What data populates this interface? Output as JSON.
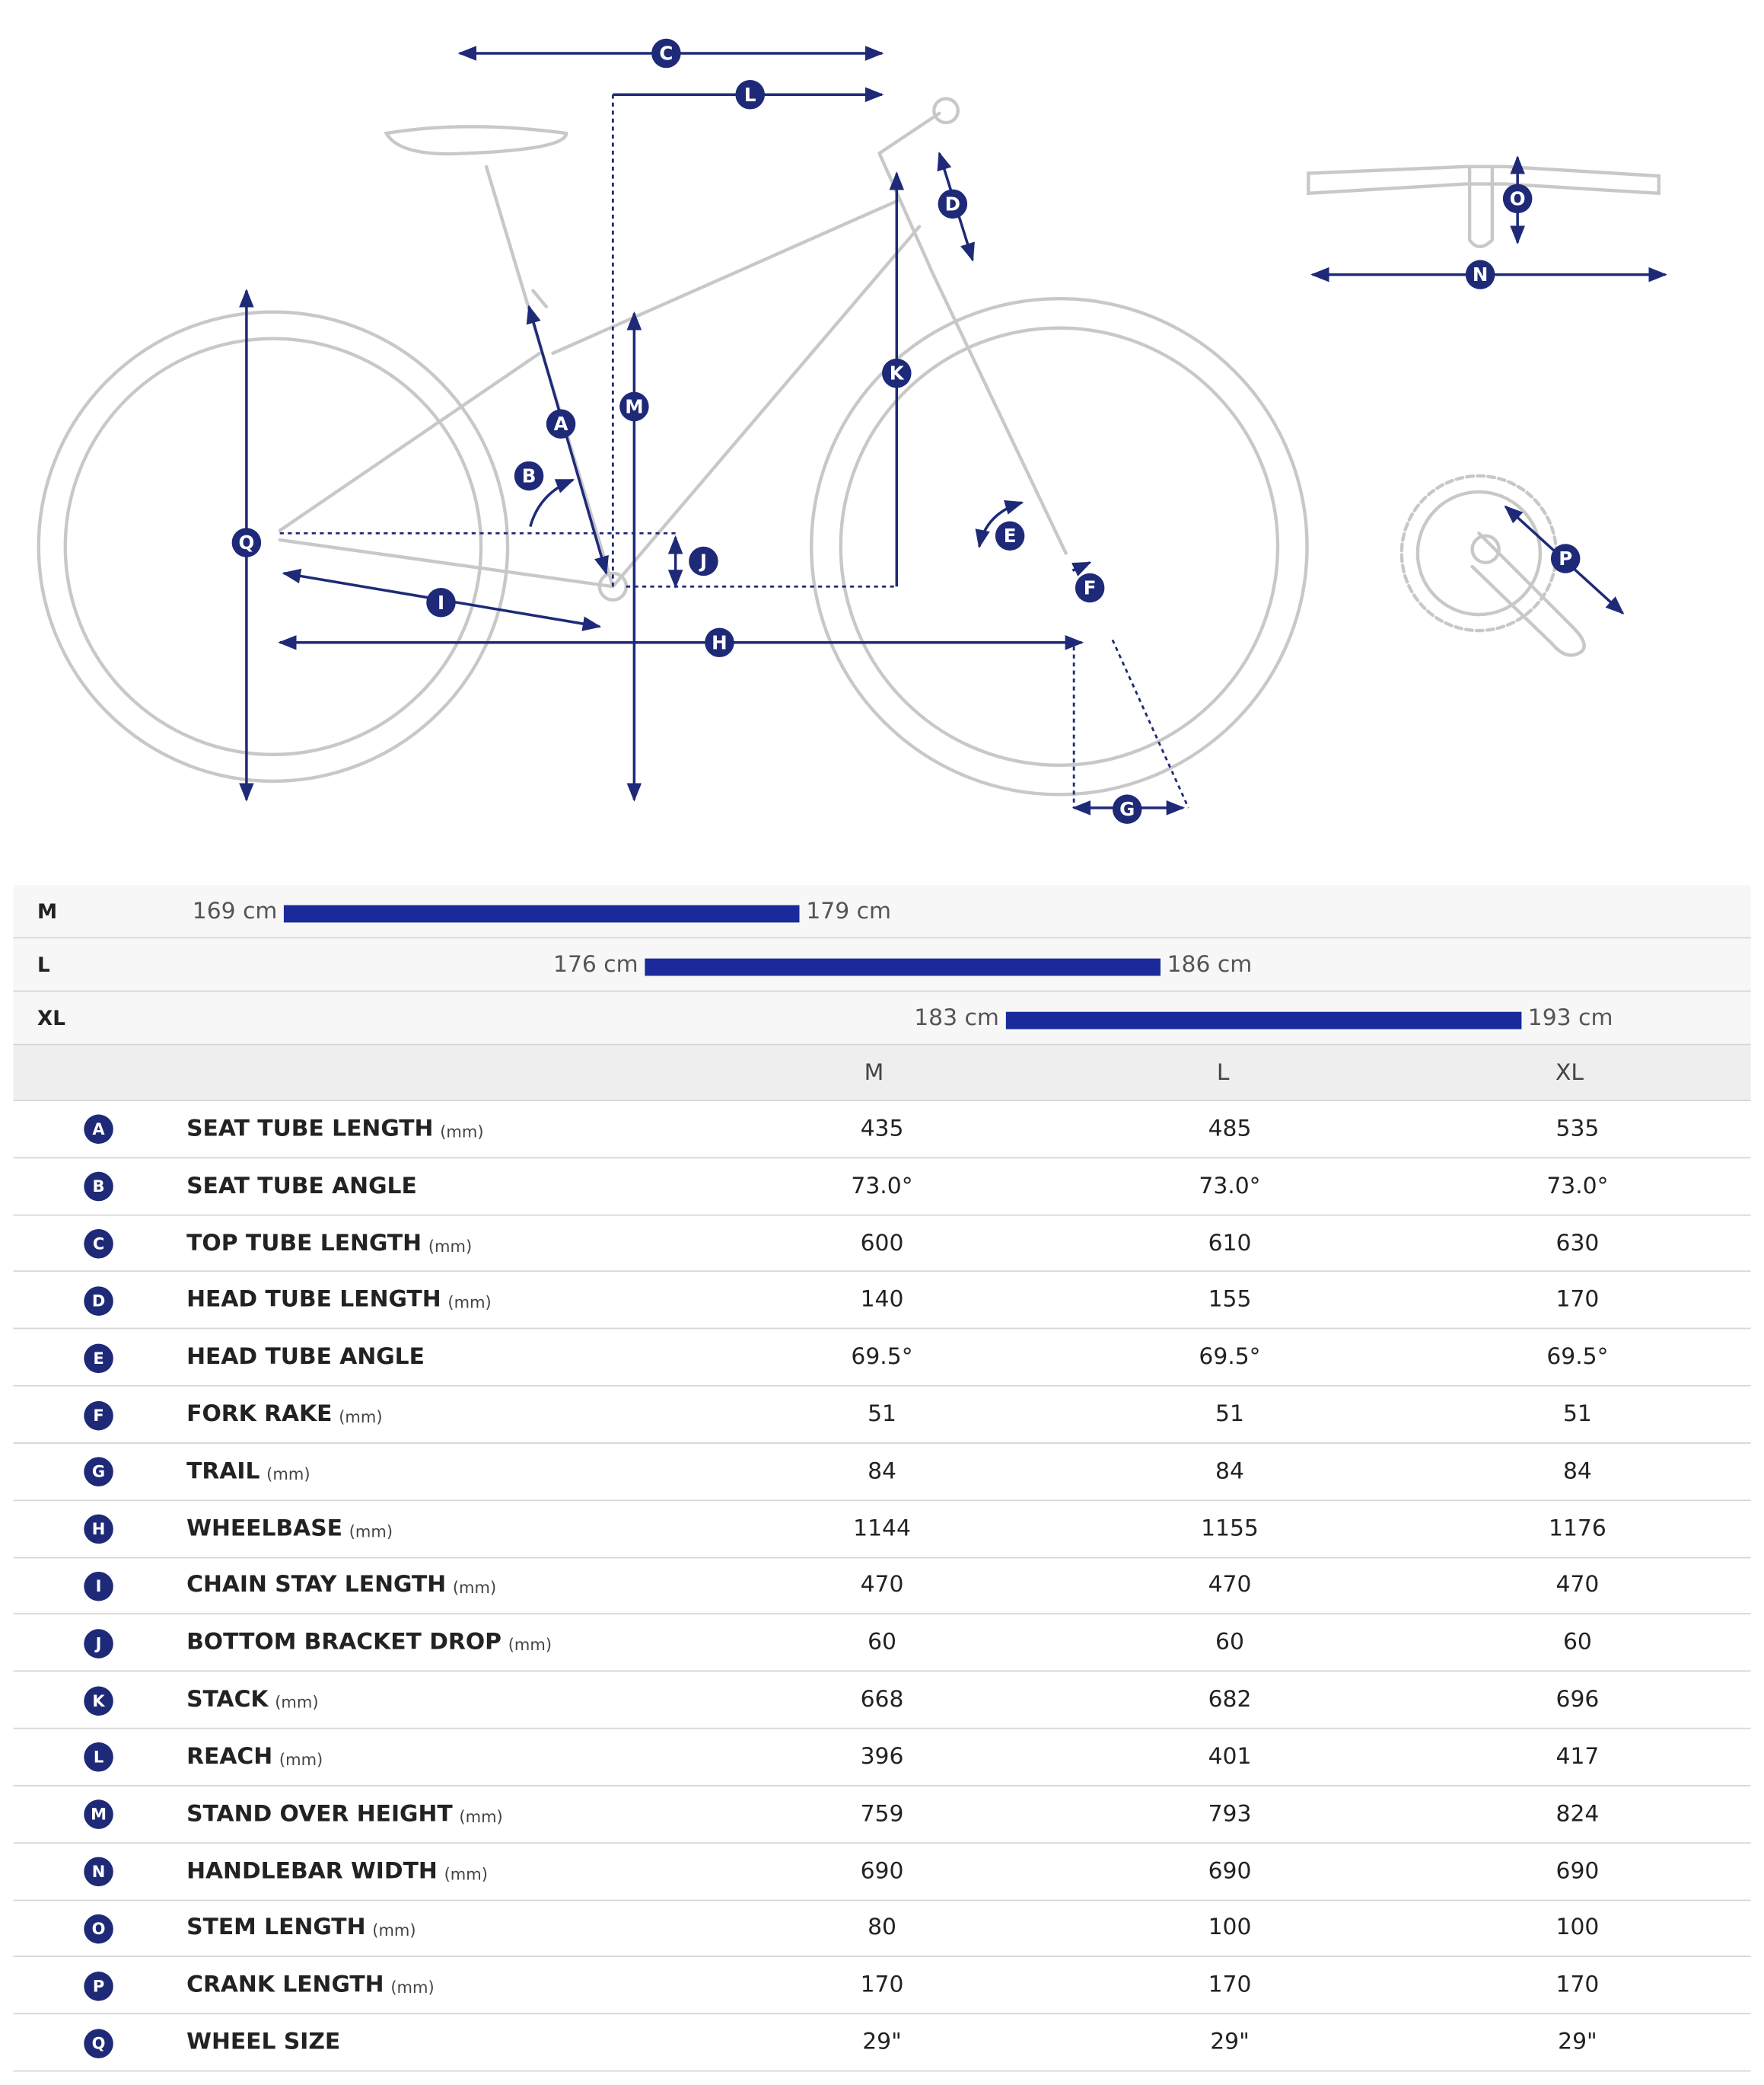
{
  "height_ranges": {
    "xlim": [
      163.75,
      197.45
    ],
    "sizes": [
      {
        "size": "M",
        "values": [
          169,
          179
        ],
        "value_labels": [
          "169 cm",
          "179 cm"
        ]
      },
      {
        "size": "L",
        "values": [
          176,
          186
        ],
        "value_labels": [
          "176 cm",
          "186 cm"
        ]
      },
      {
        "size": "XL",
        "values": [
          183,
          193
        ],
        "value_labels": [
          "183 cm",
          "193 cm"
        ]
      }
    ]
  },
  "table": {
    "columns": [
      "M",
      "L",
      "XL"
    ],
    "rows": [
      {
        "letter": "A",
        "label": "SEAT TUBE LENGTH",
        "unit": "(mm)",
        "values": [
          "435",
          "485",
          "535"
        ]
      },
      {
        "letter": "B",
        "label": "SEAT TUBE ANGLE",
        "values": [
          "73.0°",
          "73.0°",
          "73.0°"
        ]
      },
      {
        "letter": "C",
        "label": "TOP TUBE LENGTH",
        "unit": "(mm)",
        "values": [
          "600",
          "610",
          "630"
        ]
      },
      {
        "letter": "D",
        "label": "HEAD TUBE LENGTH",
        "unit": "(mm)",
        "values": [
          "140",
          "155",
          "170"
        ]
      },
      {
        "letter": "E",
        "label": "HEAD TUBE ANGLE",
        "values": [
          "69.5°",
          "69.5°",
          "69.5°"
        ]
      },
      {
        "letter": "F",
        "label": "FORK RAKE",
        "unit": "(mm)",
        "values": [
          "51",
          "51",
          "51"
        ]
      },
      {
        "letter": "G",
        "label": "TRAIL",
        "unit": "(mm)",
        "values": [
          "84",
          "84",
          "84"
        ]
      },
      {
        "letter": "H",
        "label": "WHEELBASE",
        "unit": "(mm)",
        "values": [
          "1144",
          "1155",
          "1176"
        ]
      },
      {
        "letter": "I",
        "label": "CHAIN STAY LENGTH",
        "unit": "(mm)",
        "values": [
          "470",
          "470",
          "470"
        ]
      },
      {
        "letter": "J",
        "label": "BOTTOM BRACKET DROP",
        "unit": "(mm)",
        "values": [
          "60",
          "60",
          "60"
        ]
      },
      {
        "letter": "K",
        "label": "STACK",
        "unit": "(mm)",
        "values": [
          "668",
          "682",
          "696"
        ]
      },
      {
        "letter": "L",
        "label": "REACH",
        "unit": "(mm)",
        "values": [
          "396",
          "401",
          "417"
        ]
      },
      {
        "letter": "M",
        "label": "STAND OVER HEIGHT",
        "unit": "(mm)",
        "values": [
          "759",
          "793",
          "824"
        ]
      },
      {
        "letter": "N",
        "label": "HANDLEBAR WIDTH",
        "unit": "(mm)",
        "values": [
          "690",
          "690",
          "690"
        ]
      },
      {
        "letter": "O",
        "label": "STEM LENGTH",
        "unit": "(mm)",
        "values": [
          "80",
          "100",
          "100"
        ]
      },
      {
        "letter": "P",
        "label": "CRANK LENGTH",
        "unit": "(mm)",
        "values": [
          "170",
          "170",
          "170"
        ]
      },
      {
        "letter": "Q",
        "label": "WHEEL SIZE",
        "values": [
          "29\"",
          "29\"",
          "29\""
        ]
      }
    ]
  }
}
